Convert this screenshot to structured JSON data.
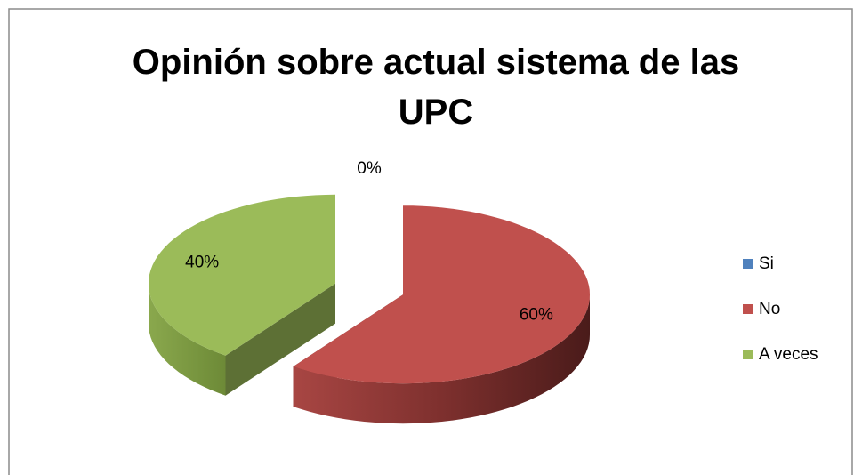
{
  "chart_data": {
    "type": "pie",
    "title": "Opinión sobre actual sistema de las UPC",
    "categories": [
      "Si",
      "No",
      "A veces"
    ],
    "values": [
      0,
      60,
      40
    ],
    "value_labels": [
      "0%",
      "60%",
      "40%"
    ],
    "colors": [
      "#4f81bd",
      "#c0504d",
      "#9bbb59"
    ],
    "legend": "right"
  }
}
